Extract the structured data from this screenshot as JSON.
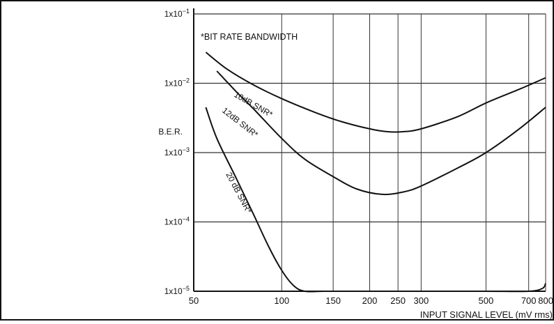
{
  "chart_data": {
    "type": "line",
    "title": "",
    "xlabel": "INPUT SIGNAL LEVEL (mV rms)",
    "ylabel": "B.E.R.",
    "x_scale": "log",
    "y_scale": "log",
    "xlim": [
      50,
      800
    ],
    "ylim": [
      1e-05,
      0.1
    ],
    "x_ticks": [
      50,
      100,
      150,
      200,
      250,
      300,
      500,
      700,
      800
    ],
    "x_tick_labels": [
      "50",
      "100",
      "150",
      "200",
      "250",
      "300",
      "500",
      "700",
      "800"
    ],
    "y_ticks": [
      0.1,
      0.01,
      0.001,
      0.0001,
      1e-05
    ],
    "y_tick_labels": [
      {
        "base": "1x10",
        "exp": "−1"
      },
      {
        "base": "1x10",
        "exp": "−2"
      },
      {
        "base": "1x10",
        "exp": "−3"
      },
      {
        "base": "1x10",
        "exp": "−4"
      },
      {
        "base": "1x10",
        "exp": "−5"
      }
    ],
    "grid": true,
    "annotation": "*BIT RATE BANDWIDTH",
    "series": [
      {
        "name": "10dB SNR*",
        "x": [
          55,
          65,
          80,
          100,
          130,
          160,
          200,
          230,
          260,
          300,
          400,
          500,
          650,
          800
        ],
        "y": [
          0.028,
          0.016,
          0.0095,
          0.006,
          0.0038,
          0.0028,
          0.0022,
          0.002,
          0.002,
          0.0022,
          0.0033,
          0.0052,
          0.0082,
          0.012
        ]
      },
      {
        "name": "12dB SNR*",
        "x": [
          60,
          70,
          80,
          100,
          120,
          150,
          180,
          220,
          260,
          300,
          400,
          500,
          650,
          800
        ],
        "y": [
          0.015,
          0.0075,
          0.0043,
          0.0016,
          0.0008,
          0.00045,
          0.0003,
          0.00025,
          0.00027,
          0.00033,
          0.0006,
          0.001,
          0.0022,
          0.0045
        ]
      },
      {
        "name": "20 dB SNR*",
        "x": [
          55,
          60,
          70,
          80,
          90,
          100,
          110,
          120,
          140,
          200,
          300,
          500,
          700,
          780,
          800
        ],
        "y": [
          0.0045,
          0.0016,
          0.00042,
          0.00013,
          4.5e-05,
          2e-05,
          1.2e-05,
          1e-05,
          1e-05,
          1e-05,
          1e-05,
          1e-05,
          1e-05,
          1.1e-05,
          1.3e-05
        ]
      }
    ]
  }
}
